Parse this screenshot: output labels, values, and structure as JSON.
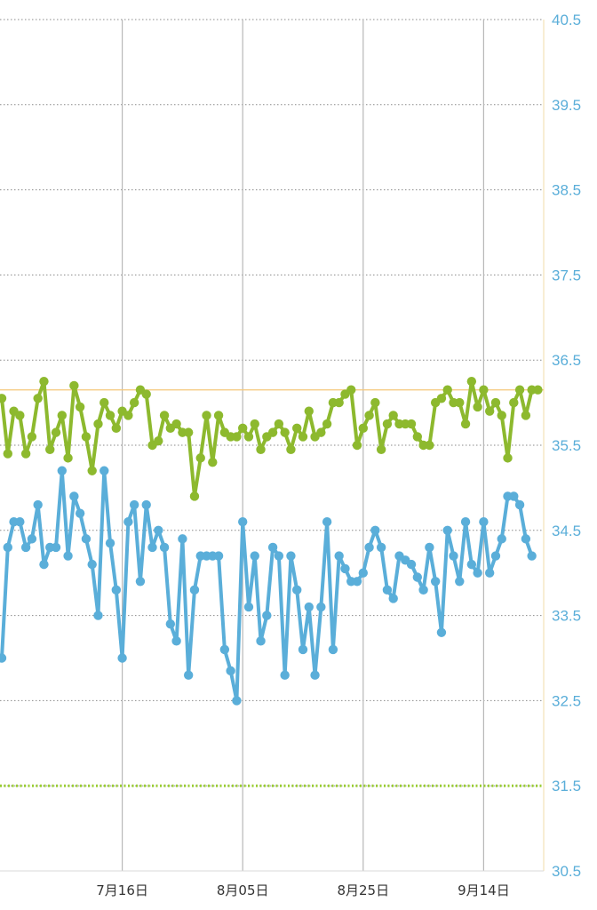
{
  "chart_data": {
    "type": "line",
    "title": "",
    "xlabel": "",
    "ylabel": "",
    "ylim": [
      30.5,
      40.5
    ],
    "y_ticks": [
      "30.5",
      "31.5",
      "32.5",
      "33.5",
      "34.5",
      "35.5",
      "36.5",
      "37.5",
      "38.5",
      "39.5",
      "40.5"
    ],
    "x_ticks": [
      "7月16日",
      "8月05日",
      "8月25日",
      "9月14日"
    ],
    "x_tick_day_index": [
      20,
      40,
      60,
      80
    ],
    "x_range_days": [
      0,
      90
    ],
    "grid": true,
    "legend": "none",
    "reference_lines": [
      {
        "value": 36.15,
        "color": "#f5c77a",
        "style": "solid"
      },
      {
        "value": 31.5,
        "color": "#9acd32",
        "style": "dotted"
      }
    ],
    "series": [
      {
        "color": "#8db92e",
        "values": [
          36.05,
          35.4,
          35.9,
          35.85,
          35.4,
          35.6,
          36.05,
          36.25,
          35.45,
          35.65,
          35.85,
          35.35,
          36.2,
          35.95,
          35.6,
          35.2,
          35.75,
          36.0,
          35.85,
          35.7,
          35.9,
          35.85,
          36.0,
          36.15,
          36.1,
          35.5,
          35.55,
          35.85,
          35.7,
          35.75,
          35.65,
          35.65,
          34.9,
          35.35,
          35.85,
          35.3,
          35.85,
          35.65,
          35.6,
          35.6,
          35.7,
          35.6,
          35.75,
          35.45,
          35.6,
          35.65,
          35.75,
          35.65,
          35.45,
          35.7,
          35.6,
          35.9,
          35.6,
          35.65,
          35.75,
          36.0,
          36.0,
          36.1,
          36.15,
          35.5,
          35.7,
          35.85,
          36.0,
          35.45,
          35.75,
          35.85,
          35.75,
          35.75,
          35.75,
          35.6,
          35.5,
          35.5,
          36.0,
          36.05,
          36.15,
          36.0,
          36.0,
          35.75,
          36.25,
          35.95,
          36.15,
          35.9,
          36.0,
          35.85,
          35.35,
          36.0,
          36.15,
          35.85,
          36.15,
          36.15
        ]
      },
      {
        "color": "#5aaed9",
        "values": [
          33.0,
          34.3,
          34.6,
          34.6,
          34.3,
          34.4,
          34.8,
          34.1,
          34.3,
          34.3,
          35.2,
          34.2,
          34.9,
          34.7,
          34.4,
          34.1,
          33.5,
          35.2,
          34.35,
          33.8,
          33.0,
          34.6,
          34.8,
          33.9,
          34.8,
          34.3,
          34.5,
          34.3,
          33.4,
          33.2,
          34.4,
          32.8,
          33.8,
          34.2,
          34.2,
          34.2,
          34.2,
          33.1,
          32.85,
          32.5,
          34.6,
          33.6,
          34.2,
          33.2,
          33.5,
          34.3,
          34.2,
          32.8,
          34.2,
          33.8,
          33.1,
          33.6,
          32.8,
          33.6,
          34.6,
          33.1,
          34.2,
          34.05,
          33.9,
          33.9,
          34.0,
          34.3,
          34.5,
          34.3,
          33.8,
          33.7,
          34.2,
          34.15,
          34.1,
          33.95,
          33.8,
          34.3,
          33.9,
          33.3,
          34.5,
          34.2,
          33.9,
          34.6,
          34.1,
          34.0,
          34.6,
          34.0,
          34.2,
          34.4,
          34.9,
          34.9,
          34.8,
          34.4,
          34.2
        ]
      }
    ]
  }
}
